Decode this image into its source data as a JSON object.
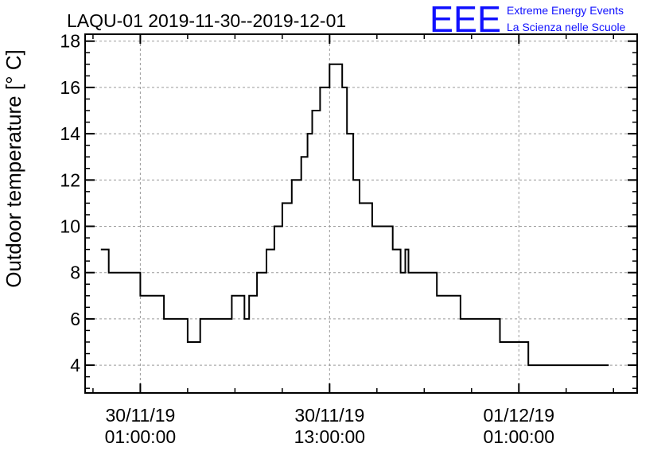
{
  "header": {
    "title": "LAQU-01 2019-11-30--2019-12-01",
    "logo_mark": "EEE",
    "logo_line1": "Extreme Energy Events",
    "logo_line2": "La Scienza nelle Scuole",
    "logo_color": "#1010ff"
  },
  "chart_data": {
    "type": "line",
    "step": true,
    "title": "LAQU-01 2019-11-30--2019-12-01",
    "xlabel": "",
    "ylabel": "Outdoor temperature [° C]",
    "xunit": "hours since 2019-11-30 00:00",
    "xlim": [
      -2.5,
      32.5
    ],
    "ylim": [
      2.8,
      18.3
    ],
    "grid": true,
    "line_color": "#000000",
    "y_ticks": [
      4,
      6,
      8,
      10,
      12,
      14,
      16,
      18
    ],
    "x_ticks": [
      {
        "x": 1,
        "line1": "30/11/19",
        "line2": "01:00:00"
      },
      {
        "x": 13,
        "line1": "30/11/19",
        "line2": "13:00:00"
      },
      {
        "x": 25,
        "line1": "01/12/19",
        "line2": "01:00:00"
      }
    ],
    "series": [
      {
        "name": "",
        "points": [
          [
            -1.5,
            9
          ],
          [
            -1.0,
            9
          ],
          [
            -1.0,
            8
          ],
          [
            1.0,
            8
          ],
          [
            1.0,
            7
          ],
          [
            2.5,
            7
          ],
          [
            2.5,
            6
          ],
          [
            4.0,
            6
          ],
          [
            4.0,
            5
          ],
          [
            4.8,
            5
          ],
          [
            4.8,
            6
          ],
          [
            6.8,
            6
          ],
          [
            6.8,
            7
          ],
          [
            7.6,
            7
          ],
          [
            7.6,
            6
          ],
          [
            7.9,
            6
          ],
          [
            7.9,
            7
          ],
          [
            8.4,
            7
          ],
          [
            8.4,
            8
          ],
          [
            9.0,
            8
          ],
          [
            9.0,
            9
          ],
          [
            9.5,
            9
          ],
          [
            9.5,
            10
          ],
          [
            10.0,
            10
          ],
          [
            10.0,
            11
          ],
          [
            10.6,
            11
          ],
          [
            10.6,
            12
          ],
          [
            11.2,
            12
          ],
          [
            11.2,
            13
          ],
          [
            11.6,
            13
          ],
          [
            11.6,
            14
          ],
          [
            11.9,
            14
          ],
          [
            11.9,
            15
          ],
          [
            12.4,
            15
          ],
          [
            12.4,
            16
          ],
          [
            13.0,
            16
          ],
          [
            13.0,
            17
          ],
          [
            13.8,
            17
          ],
          [
            13.8,
            16
          ],
          [
            14.1,
            16
          ],
          [
            14.1,
            14
          ],
          [
            14.5,
            14
          ],
          [
            14.5,
            12
          ],
          [
            14.9,
            12
          ],
          [
            14.9,
            11
          ],
          [
            15.7,
            11
          ],
          [
            15.7,
            10
          ],
          [
            17.0,
            10
          ],
          [
            17.0,
            9
          ],
          [
            17.5,
            9
          ],
          [
            17.5,
            8
          ],
          [
            17.8,
            8
          ],
          [
            17.8,
            9
          ],
          [
            18.0,
            9
          ],
          [
            18.0,
            8
          ],
          [
            19.8,
            8
          ],
          [
            19.8,
            7
          ],
          [
            21.3,
            7
          ],
          [
            21.3,
            6
          ],
          [
            23.8,
            6
          ],
          [
            23.8,
            5
          ],
          [
            25.6,
            5
          ],
          [
            25.6,
            4
          ],
          [
            30.7,
            4
          ]
        ]
      }
    ]
  }
}
